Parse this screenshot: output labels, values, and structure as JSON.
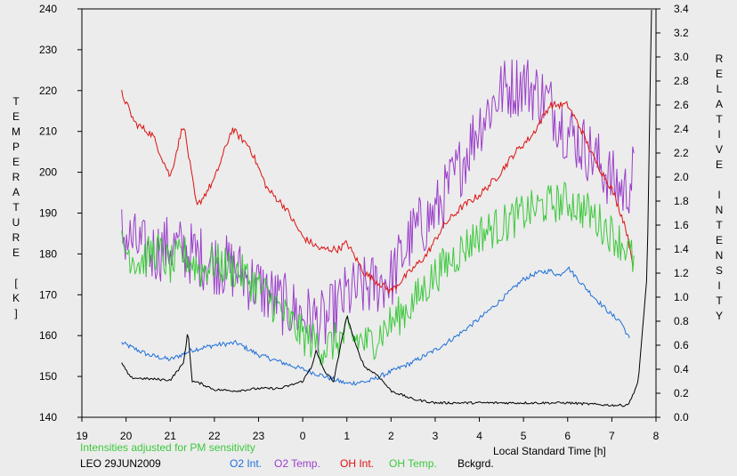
{
  "chart_data": {
    "type": "line",
    "title": "",
    "xlabel": "Local Standard Time [h]",
    "ylabel_left": "TEMPERATURE [K]",
    "ylabel_right": "RELATIVE INTENSITY",
    "note": "Intensities adjusted for PM sensitivity",
    "station_date": "LEO 29JUN2009",
    "xlim": [
      19,
      32
    ],
    "x_tick_values": [
      19,
      20,
      21,
      22,
      23,
      24,
      25,
      26,
      27,
      28,
      29,
      30,
      31,
      32
    ],
    "x_tick_labels": [
      "19",
      "20",
      "21",
      "22",
      "23",
      "0",
      "1",
      "2",
      "3",
      "4",
      "5",
      "6",
      "7",
      "8"
    ],
    "ylim_left": [
      140,
      240
    ],
    "y_left_ticks": [
      "140",
      "150",
      "160",
      "170",
      "180",
      "190",
      "200",
      "210",
      "220",
      "230",
      "240"
    ],
    "ylim_right": [
      0.0,
      3.4
    ],
    "y_right_ticks": [
      "0.0",
      "0.2",
      "0.4",
      "0.6",
      "0.8",
      "1.0",
      "1.2",
      "1.4",
      "1.6",
      "1.8",
      "2.0",
      "2.2",
      "2.4",
      "2.6",
      "2.8",
      "3.0",
      "3.2",
      "3.4"
    ],
    "grid": false,
    "legend_position": "bottom",
    "series": [
      {
        "name": "O2 Int.",
        "axis": "right",
        "color": "#1e6fd9",
        "noise": 0.02,
        "x": [
          19.9,
          20.5,
          21.0,
          21.5,
          22.0,
          22.5,
          23.0,
          23.5,
          24.0,
          24.5,
          25.0,
          25.5,
          26.0,
          26.5,
          27.0,
          27.5,
          28.0,
          28.5,
          29.0,
          29.3,
          29.6,
          29.8,
          30.0,
          30.3,
          30.6,
          31.0,
          31.2,
          31.4
        ],
        "values": [
          0.62,
          0.52,
          0.48,
          0.56,
          0.6,
          0.62,
          0.52,
          0.46,
          0.4,
          0.34,
          0.28,
          0.3,
          0.38,
          0.46,
          0.56,
          0.68,
          0.82,
          0.98,
          1.15,
          1.2,
          1.22,
          1.18,
          1.25,
          1.12,
          1.0,
          0.85,
          0.8,
          0.65
        ]
      },
      {
        "name": "O2 Temp.",
        "axis": "left",
        "color": "#9a3ec9",
        "noise": 8,
        "x": [
          19.9,
          20.5,
          21.0,
          21.5,
          22.0,
          22.5,
          23.0,
          23.5,
          24.0,
          24.5,
          25.0,
          25.5,
          26.0,
          26.5,
          27.0,
          27.5,
          28.0,
          28.5,
          29.0,
          29.5,
          30.0,
          30.5,
          31.0,
          31.3,
          31.5
        ],
        "values": [
          185,
          180,
          182,
          180,
          178,
          176,
          172,
          168,
          165,
          163,
          170,
          172,
          174,
          185,
          190,
          200,
          212,
          220,
          222,
          218,
          210,
          205,
          198,
          195,
          200
        ]
      },
      {
        "name": "OH Int.",
        "axis": "right",
        "color": "#dd1111",
        "noise": 0.03,
        "x": [
          19.9,
          20.2,
          20.6,
          21.0,
          21.3,
          21.6,
          22.0,
          22.4,
          22.8,
          23.2,
          23.6,
          24.0,
          24.4,
          24.8,
          25.0,
          25.4,
          25.8,
          26.0,
          26.4,
          26.8,
          27.2,
          27.6,
          28.0,
          28.4,
          28.8,
          29.2,
          29.6,
          30.0,
          30.3,
          30.6,
          31.0,
          31.3,
          31.5
        ],
        "values": [
          2.7,
          2.45,
          2.35,
          2.0,
          2.45,
          1.75,
          1.98,
          2.4,
          2.25,
          1.9,
          1.75,
          1.5,
          1.4,
          1.4,
          1.45,
          1.2,
          1.1,
          1.05,
          1.2,
          1.35,
          1.6,
          1.75,
          1.85,
          2.0,
          2.2,
          2.35,
          2.6,
          2.6,
          2.4,
          2.15,
          1.9,
          1.6,
          1.25
        ]
      },
      {
        "name": "OH Temp.",
        "axis": "left",
        "color": "#3cc93c",
        "noise": 5,
        "x": [
          19.9,
          20.3,
          20.7,
          21.0,
          21.3,
          21.7,
          22.0,
          22.5,
          23.0,
          23.5,
          24.0,
          24.5,
          25.0,
          25.5,
          26.0,
          26.5,
          27.0,
          27.5,
          28.0,
          28.5,
          29.0,
          29.5,
          30.0,
          30.5,
          31.0,
          31.3,
          31.5
        ],
        "values": [
          182,
          178,
          181,
          177,
          180,
          176,
          178,
          176,
          172,
          166,
          160,
          157,
          160,
          158,
          163,
          168,
          175,
          180,
          185,
          187,
          190,
          192,
          193,
          190,
          185,
          182,
          178
        ]
      },
      {
        "name": "Bckgrd.",
        "axis": "right",
        "color": "#000000",
        "noise": 0.01,
        "x": [
          19.9,
          20.1,
          20.5,
          21.0,
          21.3,
          21.4,
          21.5,
          21.7,
          22.0,
          22.5,
          23.0,
          23.5,
          24.0,
          24.2,
          24.3,
          24.5,
          24.7,
          25.0,
          25.2,
          25.4,
          25.7,
          26.0,
          26.5,
          27.0,
          28.0,
          29.0,
          30.0,
          31.0,
          31.3,
          31.4,
          31.6,
          31.8,
          31.9
        ],
        "values": [
          0.45,
          0.33,
          0.32,
          0.31,
          0.45,
          0.72,
          0.3,
          0.28,
          0.23,
          0.22,
          0.24,
          0.24,
          0.3,
          0.42,
          0.55,
          0.38,
          0.3,
          0.85,
          0.6,
          0.42,
          0.35,
          0.22,
          0.15,
          0.12,
          0.12,
          0.12,
          0.12,
          0.1,
          0.1,
          0.12,
          0.3,
          1.2,
          3.5
        ]
      }
    ]
  }
}
